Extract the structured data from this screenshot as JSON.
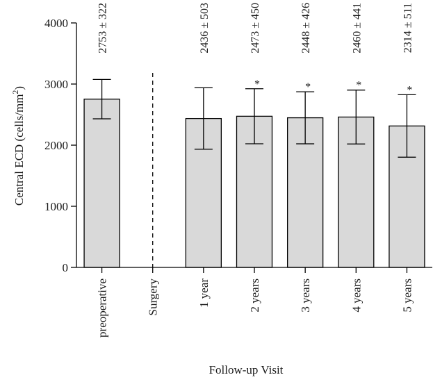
{
  "chart_data": {
    "type": "bar",
    "categories": [
      "preoperative",
      "Surgery",
      "1 year",
      "2 years",
      "3 years",
      "4 years",
      "5 years"
    ],
    "values": [
      2753,
      null,
      2436,
      2473,
      2448,
      2460,
      2314
    ],
    "errors": [
      322,
      null,
      503,
      450,
      426,
      441,
      511
    ],
    "annotations": [
      "2753 ± 322",
      "",
      "2436 ± 503",
      "2473 ± 450",
      "2448 ± 426",
      "2460 ± 441",
      "2314 ± 511"
    ],
    "significant": [
      false,
      false,
      false,
      true,
      true,
      true,
      true
    ],
    "significance_marker": "*",
    "divider_after_category": "Surgery",
    "ylabel_text": "Central ECD (cells/mm",
    "ylabel_sup": "2",
    "ylabel_close": ")",
    "xlabel": "Follow-up Visit",
    "ylim": [
      0,
      4000
    ],
    "yticks": [
      0,
      1000,
      2000,
      3000,
      4000
    ],
    "colors": {
      "bar_fill": "#d9d9d9",
      "bar_stroke": "#000000"
    },
    "grid": false
  }
}
